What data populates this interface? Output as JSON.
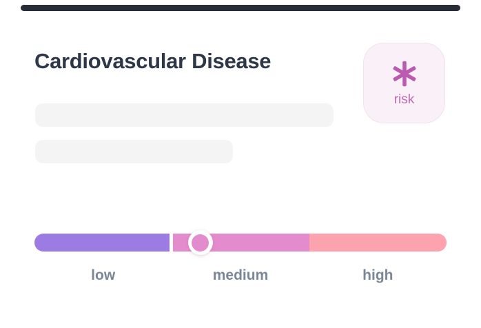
{
  "top_handle": {
    "color": "#272c36"
  },
  "card": {
    "title": "Cardiovascular Disease",
    "title_color": "#2d3748"
  },
  "risk_badge": {
    "label": "risk",
    "icon": "asterisk-icon",
    "icon_color": "#bb5ab1",
    "label_color": "#c06db4",
    "background": "#faf0f7",
    "border_color": "#f3e1ed"
  },
  "skeleton": {
    "line_count": 2,
    "color": "#f4f4f4"
  },
  "slider": {
    "type": "risk-level",
    "levels": [
      {
        "id": "low",
        "label": "low",
        "color": "#9c7ce3"
      },
      {
        "id": "medium",
        "label": "medium",
        "color": "#e48bce"
      },
      {
        "id": "high",
        "label": "high",
        "color": "#fda3ad"
      }
    ],
    "selected_level": "medium",
    "knob_position_pct": 40.3,
    "label_color": "#7b8799"
  }
}
